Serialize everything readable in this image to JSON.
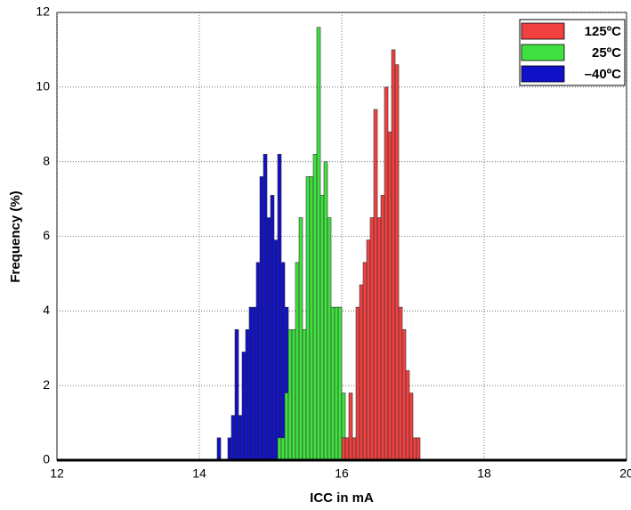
{
  "chart_data": {
    "type": "histogram",
    "xlabel": "ICC in mA",
    "ylabel": "Frequency (%)",
    "bins": [
      14.2,
      14.25,
      14.3,
      14.35,
      14.4,
      14.45,
      14.5,
      14.55,
      14.6,
      14.65,
      14.7,
      14.75,
      14.8,
      14.85,
      14.9,
      14.95,
      15.0,
      15.05,
      15.1,
      15.15,
      15.2,
      15.25,
      15.3,
      15.35,
      15.4,
      15.45,
      15.5,
      15.55,
      15.6,
      15.65,
      15.7,
      15.75,
      15.8,
      15.85,
      15.9,
      15.95,
      16.0,
      16.05,
      16.1,
      16.15,
      16.2,
      16.25,
      16.3,
      16.35,
      16.4,
      16.45,
      16.5,
      16.55,
      16.6,
      16.65,
      16.7,
      16.75,
      16.8,
      16.85,
      16.9,
      16.95,
      17.0,
      17.05,
      17.1,
      17.15,
      17.2,
      17.25,
      17.3,
      17.35
    ],
    "series": [
      {
        "name": "125ºC",
        "color": "#f04040",
        "values": [
          0,
          0,
          0,
          0,
          0,
          0,
          0,
          0,
          0,
          0,
          0,
          0,
          0,
          0,
          0,
          0,
          0,
          0,
          0,
          0,
          0,
          0,
          0,
          0,
          0,
          0,
          0,
          0,
          0,
          0,
          0,
          0,
          0,
          0,
          0,
          0,
          0.6,
          0.6,
          1.8,
          0.6,
          4.1,
          4.7,
          5.3,
          5.9,
          6.5,
          9.4,
          6.5,
          7.1,
          10.0,
          8.8,
          11.0,
          10.6,
          4.1,
          3.5,
          2.4,
          1.8,
          0.6,
          0.6,
          0,
          0,
          0,
          0,
          0
        ]
      },
      {
        "name": "25ºC",
        "color": "#40e040",
        "values": [
          0,
          0,
          0,
          0,
          0,
          0,
          0,
          0,
          0,
          0,
          0,
          0,
          0,
          0,
          0,
          0,
          0,
          0,
          0.6,
          0.6,
          1.8,
          3.5,
          3.5,
          5.3,
          6.5,
          3.5,
          7.6,
          7.6,
          8.2,
          11.6,
          7.1,
          8.0,
          6.5,
          4.1,
          4.1,
          4.1,
          1.8,
          0.6,
          0,
          0,
          0,
          0,
          0,
          0,
          0,
          0,
          0,
          0,
          0,
          0,
          0,
          0,
          0,
          0,
          0,
          0,
          0,
          0,
          0,
          0,
          0,
          0,
          0
        ]
      },
      {
        "name": "–40ºC",
        "color": "#1010c8",
        "values": [
          0,
          0.6,
          0,
          0,
          0.6,
          1.2,
          3.5,
          1.2,
          2.9,
          3.5,
          4.1,
          4.1,
          5.3,
          7.6,
          8.2,
          6.5,
          7.1,
          5.9,
          8.2,
          5.3,
          4.1,
          1.8,
          0.6,
          0.6,
          0,
          0,
          0,
          0.6,
          0,
          0,
          0,
          0,
          0,
          0,
          0,
          0,
          0,
          0,
          0,
          0,
          0,
          0,
          0,
          0,
          0,
          0,
          0,
          0,
          0,
          0,
          0,
          0,
          0,
          0,
          0,
          0,
          0,
          0,
          0,
          0,
          0,
          0,
          0
        ]
      }
    ],
    "xlim": [
      12,
      20
    ],
    "xticks": [
      12,
      14,
      16,
      18,
      20
    ],
    "ylim": [
      0,
      12
    ],
    "yticks": [
      0,
      2,
      4,
      6,
      8,
      10,
      12
    ],
    "grid": true,
    "legend": "upper right"
  }
}
